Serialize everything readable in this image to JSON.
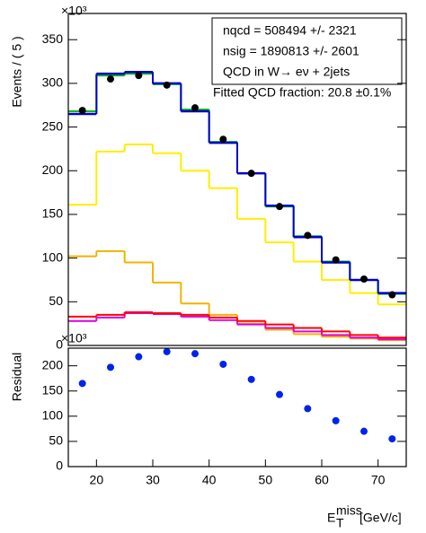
{
  "chart_data": [
    {
      "type": "histogram",
      "exponent": "×10³",
      "ylabel": "Events / ( 5 )",
      "bins": [
        15,
        20,
        25,
        30,
        35,
        40,
        45,
        50,
        55,
        60,
        65,
        70,
        75
      ],
      "xlim": [
        15,
        75
      ],
      "ylim": [
        0,
        380
      ],
      "yticks": [
        0,
        50,
        100,
        150,
        200,
        250,
        300,
        350
      ],
      "legend": [
        "nqcd = 508494 +/- 2321",
        "nsig = 1890813 +/- 2601",
        "QCD in W→ eν + 2jets"
      ],
      "annotation": "Fitted QCD fraction: 20.8  ±0.1%",
      "series": [
        {
          "style": "step",
          "color": "#ffee00",
          "values": [
            161,
            222,
            230,
            220,
            200,
            180,
            145,
            118,
            96,
            75,
            60,
            47
          ]
        },
        {
          "style": "step",
          "color": "#f0b400",
          "values": [
            102,
            108,
            95,
            72,
            48,
            35,
            25,
            18,
            13,
            10,
            8,
            6
          ]
        },
        {
          "style": "step",
          "color": "#dd00dd",
          "values": [
            28,
            32,
            37,
            36,
            33,
            29,
            24,
            20,
            16,
            12,
            9,
            7
          ]
        },
        {
          "style": "step",
          "color": "#ff0000",
          "values": [
            33,
            35,
            38,
            37,
            35,
            32,
            28,
            24,
            20,
            16,
            12,
            9
          ]
        },
        {
          "style": "step",
          "color": "#00bb00",
          "values": [
            268,
            309,
            311,
            299,
            270,
            233,
            197,
            159,
            125,
            96,
            75,
            59
          ]
        },
        {
          "style": "step",
          "color": "#0000cc",
          "values": [
            265,
            311,
            313,
            300,
            268,
            232,
            197,
            160,
            124,
            95,
            75,
            60
          ]
        },
        {
          "style": "points",
          "color": "#000000",
          "values": [
            269,
            305,
            309,
            298,
            272,
            236,
            197,
            159,
            126,
            98,
            76,
            58
          ]
        }
      ]
    },
    {
      "type": "histogram",
      "exponent": "×10³",
      "ylabel": "Residual",
      "bins": [
        15,
        20,
        25,
        30,
        35,
        40,
        45,
        50,
        55,
        60,
        65,
        70,
        75
      ],
      "xlim": [
        15,
        75
      ],
      "ylim": [
        0,
        235
      ],
      "yticks": [
        0,
        50,
        100,
        150,
        200
      ],
      "xticks": [
        20,
        30,
        40,
        50,
        60,
        70
      ],
      "xlabel": {
        "main": "E",
        "sub": "T",
        "sup": "miss",
        "unit": "[GeV/c]"
      },
      "series": [
        {
          "style": "points",
          "color": "#0022ee",
          "values": [
            165,
            197,
            218,
            228,
            224,
            203,
            173,
            143,
            115,
            91,
            70,
            55
          ]
        }
      ]
    }
  ]
}
